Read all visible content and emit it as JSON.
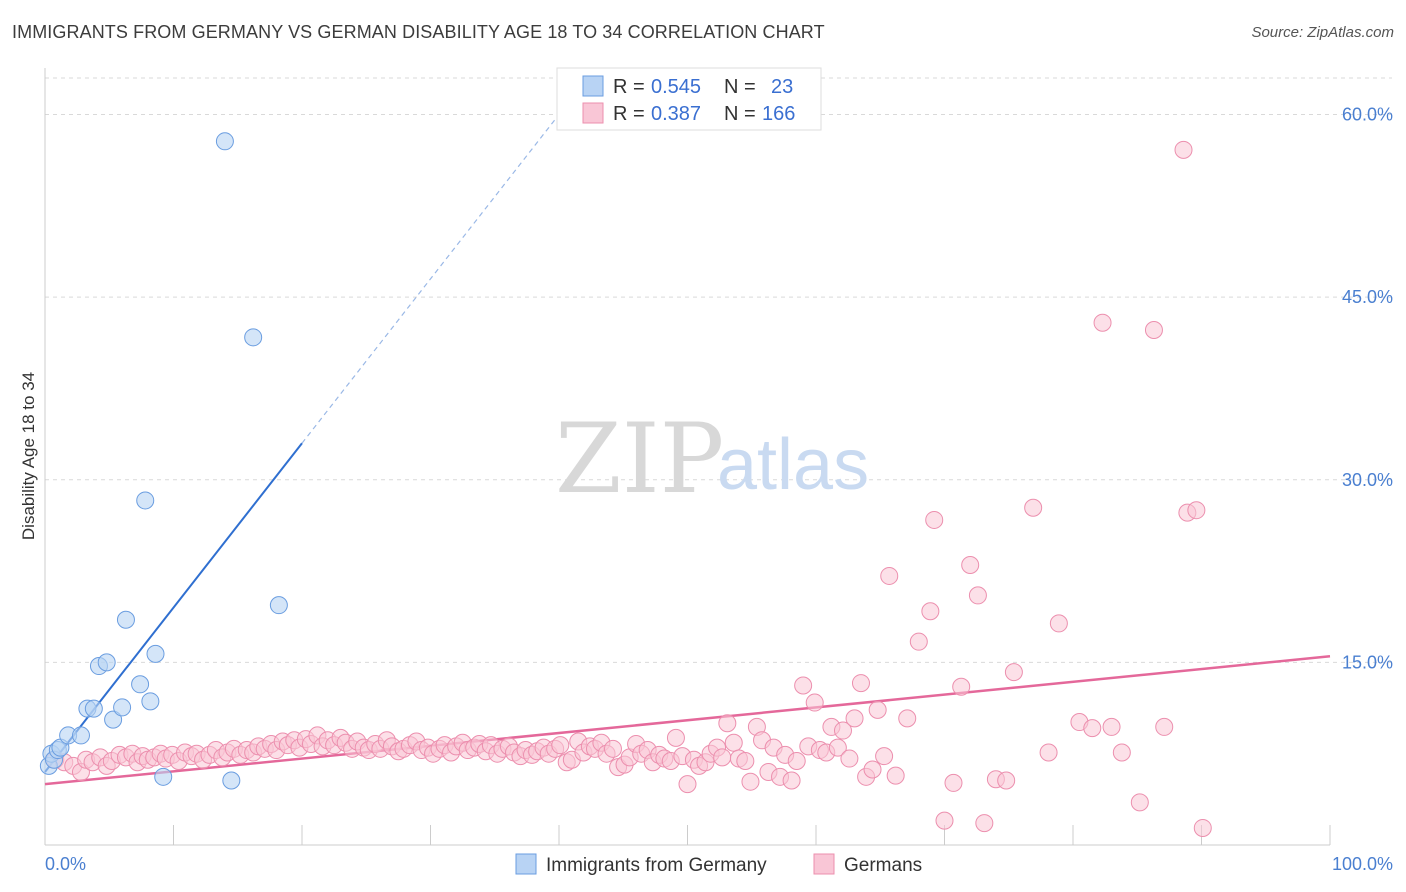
{
  "title": "IMMIGRANTS FROM GERMANY VS GERMAN DISABILITY AGE 18 TO 34 CORRELATION CHART",
  "source": "Source: ZipAtlas.com",
  "watermark": {
    "zip": "ZIP",
    "atlas": "atlas"
  },
  "colors": {
    "blue_fill": "#b8d3f4",
    "blue_stroke": "#6a9de0",
    "blue_line": "#2f6fd0",
    "pink_fill": "#f9c6d6",
    "pink_stroke": "#ec8fae",
    "pink_line": "#e4689a",
    "grid": "#d9d9d9",
    "tick_label": "#4a7fd0"
  },
  "legend": {
    "rows": [
      {
        "r_label": "R =",
        "r_value": "0.545",
        "n_label": "N =",
        "n_value": "23"
      },
      {
        "r_label": "R =",
        "r_value": "0.387",
        "n_label": "N =",
        "n_value": "166"
      }
    ]
  },
  "chart_data": {
    "type": "scatter",
    "title": "IMMIGRANTS FROM GERMANY VS GERMAN DISABILITY AGE 18 TO 34 CORRELATION CHART",
    "xlabel": "",
    "ylabel": "Disability Age 18 to 34",
    "xlim": [
      0,
      100
    ],
    "ylim": [
      0,
      63
    ],
    "x_tick_labels": [
      "0.0%",
      "100.0%"
    ],
    "y_ticks": [
      15,
      30,
      45,
      60
    ],
    "y_tick_labels": [
      "15.0%",
      "30.0%",
      "45.0%",
      "60.0%"
    ],
    "grid": true,
    "legend_position": "top-center",
    "series": [
      {
        "name": "Immigrants from Germany",
        "color": "blue",
        "r": 0.545,
        "n": 23,
        "trend": {
          "x0": 0,
          "y0": 6.0,
          "x1": 20,
          "y1": 33.0,
          "dashed_to_x": 40,
          "dashed_to_y": 60.0
        },
        "points": [
          [
            0.3,
            6.5
          ],
          [
            0.5,
            7.5
          ],
          [
            0.7,
            7.0
          ],
          [
            1.0,
            7.8
          ],
          [
            1.2,
            8.0
          ],
          [
            1.8,
            9.0
          ],
          [
            2.8,
            9.0
          ],
          [
            3.3,
            11.2
          ],
          [
            3.8,
            11.2
          ],
          [
            4.2,
            14.7
          ],
          [
            4.8,
            15.0
          ],
          [
            5.3,
            10.3
          ],
          [
            6.0,
            11.3
          ],
          [
            6.3,
            18.5
          ],
          [
            7.4,
            13.2
          ],
          [
            7.8,
            28.3
          ],
          [
            8.2,
            11.8
          ],
          [
            8.6,
            15.7
          ],
          [
            9.2,
            5.6
          ],
          [
            14.0,
            57.8
          ],
          [
            14.5,
            5.3
          ],
          [
            16.2,
            41.7
          ],
          [
            18.2,
            19.7
          ]
        ]
      },
      {
        "name": "Germans",
        "color": "pink",
        "r": 0.387,
        "n": 166,
        "trend": {
          "x0": 0,
          "y0": 5.0,
          "x1": 100,
          "y1": 15.5
        },
        "points": [
          [
            0.8,
            7.0
          ],
          [
            1.5,
            6.8
          ],
          [
            2.2,
            6.5
          ],
          [
            2.8,
            6.0
          ],
          [
            3.2,
            7.0
          ],
          [
            3.7,
            6.8
          ],
          [
            4.3,
            7.2
          ],
          [
            4.8,
            6.5
          ],
          [
            5.2,
            6.9
          ],
          [
            5.8,
            7.4
          ],
          [
            6.3,
            7.2
          ],
          [
            6.8,
            7.5
          ],
          [
            7.2,
            6.8
          ],
          [
            7.6,
            7.3
          ],
          [
            8.0,
            7.0
          ],
          [
            8.5,
            7.2
          ],
          [
            9.0,
            7.5
          ],
          [
            9.4,
            7.1
          ],
          [
            9.9,
            7.4
          ],
          [
            10.4,
            6.9
          ],
          [
            10.9,
            7.6
          ],
          [
            11.4,
            7.3
          ],
          [
            11.8,
            7.5
          ],
          [
            12.3,
            7.0
          ],
          [
            12.8,
            7.4
          ],
          [
            13.3,
            7.8
          ],
          [
            13.8,
            7.2
          ],
          [
            14.2,
            7.6
          ],
          [
            14.7,
            7.9
          ],
          [
            15.2,
            7.4
          ],
          [
            15.7,
            7.8
          ],
          [
            16.2,
            7.6
          ],
          [
            16.6,
            8.1
          ],
          [
            17.1,
            7.9
          ],
          [
            17.6,
            8.3
          ],
          [
            18.0,
            7.8
          ],
          [
            18.5,
            8.5
          ],
          [
            18.9,
            8.2
          ],
          [
            19.4,
            8.6
          ],
          [
            19.8,
            8.0
          ],
          [
            20.3,
            8.7
          ],
          [
            20.7,
            8.3
          ],
          [
            21.2,
            9.0
          ],
          [
            21.6,
            8.1
          ],
          [
            22.0,
            8.6
          ],
          [
            22.5,
            8.2
          ],
          [
            23.0,
            8.8
          ],
          [
            23.4,
            8.4
          ],
          [
            23.9,
            7.9
          ],
          [
            24.3,
            8.5
          ],
          [
            24.8,
            8.0
          ],
          [
            25.2,
            7.8
          ],
          [
            25.7,
            8.3
          ],
          [
            26.1,
            7.9
          ],
          [
            26.6,
            8.6
          ],
          [
            27.0,
            8.1
          ],
          [
            27.5,
            7.7
          ],
          [
            27.9,
            7.9
          ],
          [
            28.4,
            8.2
          ],
          [
            28.9,
            8.5
          ],
          [
            29.3,
            7.8
          ],
          [
            29.8,
            8.0
          ],
          [
            30.2,
            7.5
          ],
          [
            30.7,
            7.9
          ],
          [
            31.1,
            8.2
          ],
          [
            31.6,
            7.6
          ],
          [
            32.0,
            8.1
          ],
          [
            32.5,
            8.4
          ],
          [
            32.9,
            7.8
          ],
          [
            33.4,
            8.0
          ],
          [
            33.8,
            8.3
          ],
          [
            34.3,
            7.7
          ],
          [
            34.7,
            8.2
          ],
          [
            35.2,
            7.5
          ],
          [
            35.6,
            7.9
          ],
          [
            36.1,
            8.1
          ],
          [
            36.5,
            7.6
          ],
          [
            37.0,
            7.3
          ],
          [
            37.4,
            7.8
          ],
          [
            37.9,
            7.4
          ],
          [
            38.3,
            7.7
          ],
          [
            38.8,
            8.0
          ],
          [
            39.2,
            7.5
          ],
          [
            39.7,
            7.9
          ],
          [
            40.1,
            8.2
          ],
          [
            40.6,
            6.8
          ],
          [
            41.0,
            7.0
          ],
          [
            41.5,
            8.5
          ],
          [
            41.9,
            7.6
          ],
          [
            42.4,
            8.1
          ],
          [
            42.8,
            7.9
          ],
          [
            43.3,
            8.4
          ],
          [
            43.7,
            7.5
          ],
          [
            44.2,
            7.9
          ],
          [
            44.6,
            6.4
          ],
          [
            45.1,
            6.6
          ],
          [
            45.5,
            7.2
          ],
          [
            46.0,
            8.3
          ],
          [
            46.4,
            7.5
          ],
          [
            46.9,
            7.8
          ],
          [
            47.3,
            6.8
          ],
          [
            47.8,
            7.4
          ],
          [
            48.2,
            7.1
          ],
          [
            48.7,
            6.9
          ],
          [
            49.1,
            8.8
          ],
          [
            49.6,
            7.3
          ],
          [
            50.0,
            5.0
          ],
          [
            50.5,
            7.0
          ],
          [
            50.9,
            6.5
          ],
          [
            51.4,
            6.8
          ],
          [
            51.8,
            7.5
          ],
          [
            52.3,
            8.0
          ],
          [
            52.7,
            7.2
          ],
          [
            53.1,
            10.0
          ],
          [
            53.6,
            8.4
          ],
          [
            54.0,
            7.1
          ],
          [
            54.5,
            6.9
          ],
          [
            54.9,
            5.2
          ],
          [
            55.4,
            9.7
          ],
          [
            55.8,
            8.6
          ],
          [
            56.3,
            6.0
          ],
          [
            56.7,
            8.0
          ],
          [
            57.2,
            5.6
          ],
          [
            57.6,
            7.4
          ],
          [
            58.1,
            5.3
          ],
          [
            58.5,
            6.9
          ],
          [
            59.0,
            13.1
          ],
          [
            59.4,
            8.1
          ],
          [
            59.9,
            11.7
          ],
          [
            60.3,
            7.8
          ],
          [
            60.8,
            7.6
          ],
          [
            61.2,
            9.7
          ],
          [
            61.7,
            8.0
          ],
          [
            62.1,
            9.4
          ],
          [
            62.6,
            7.1
          ],
          [
            63.0,
            10.4
          ],
          [
            63.5,
            13.3
          ],
          [
            63.9,
            5.6
          ],
          [
            64.4,
            6.2
          ],
          [
            64.8,
            11.1
          ],
          [
            65.3,
            7.3
          ],
          [
            65.7,
            22.1
          ],
          [
            66.2,
            5.7
          ],
          [
            67.1,
            10.4
          ],
          [
            68.0,
            16.7
          ],
          [
            68.9,
            19.2
          ],
          [
            69.2,
            26.7
          ],
          [
            70.0,
            2.0
          ],
          [
            70.7,
            5.1
          ],
          [
            71.3,
            13.0
          ],
          [
            72.0,
            23.0
          ],
          [
            72.6,
            20.5
          ],
          [
            73.1,
            1.8
          ],
          [
            74.0,
            5.4
          ],
          [
            74.8,
            5.3
          ],
          [
            75.4,
            14.2
          ],
          [
            76.9,
            27.7
          ],
          [
            78.1,
            7.6
          ],
          [
            78.9,
            18.2
          ],
          [
            80.5,
            10.1
          ],
          [
            81.5,
            9.6
          ],
          [
            82.3,
            42.9
          ],
          [
            83.0,
            9.7
          ],
          [
            83.8,
            7.6
          ],
          [
            85.2,
            3.5
          ],
          [
            86.3,
            42.3
          ],
          [
            87.1,
            9.7
          ],
          [
            88.6,
            57.1
          ],
          [
            88.9,
            27.3
          ],
          [
            89.6,
            27.5
          ],
          [
            90.1,
            1.4
          ]
        ]
      }
    ]
  },
  "bottom_legend": [
    {
      "label": "Immigrants from Germany",
      "color": "blue"
    },
    {
      "label": "Germans",
      "color": "pink"
    }
  ]
}
